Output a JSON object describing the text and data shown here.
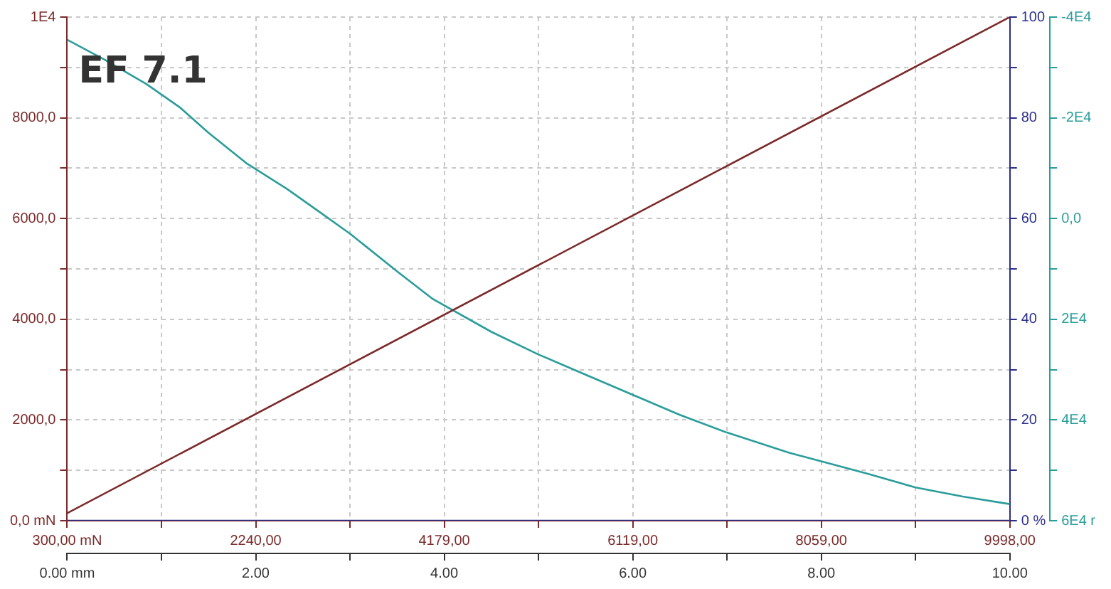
{
  "chart_data": {
    "type": "line",
    "annotations": [
      "EF 7.1"
    ],
    "xlim": [
      0,
      10
    ],
    "xticks": [
      {
        "value": 0,
        "label": "0.00 mm"
      },
      {
        "value": 1,
        "label": null
      },
      {
        "value": 2,
        "label": "2.00"
      },
      {
        "value": 3,
        "label": null
      },
      {
        "value": 4,
        "label": "4.00"
      },
      {
        "value": 5,
        "label": null
      },
      {
        "value": 6,
        "label": "6.00"
      },
      {
        "value": 7,
        "label": null
      },
      {
        "value": 8,
        "label": "8.00"
      },
      {
        "value": 9,
        "label": null
      },
      {
        "value": 10,
        "label": "10.00"
      }
    ],
    "x2lim": [
      300,
      9998
    ],
    "x2ticks": [
      {
        "value": 300,
        "label": "300,00 mN"
      },
      {
        "value": 1270,
        "label": null
      },
      {
        "value": 2240,
        "label": "2240,00"
      },
      {
        "value": 3209.5,
        "label": null
      },
      {
        "value": 4179,
        "label": "4179,00"
      },
      {
        "value": 5149,
        "label": null
      },
      {
        "value": 6119,
        "label": "6119,00"
      },
      {
        "value": 7089,
        "label": null
      },
      {
        "value": 8059,
        "label": "8059,00"
      },
      {
        "value": 9028.5,
        "label": null
      },
      {
        "value": 9998,
        "label": "9998,00"
      }
    ],
    "ylim": [
      0,
      10000
    ],
    "yticks": [
      {
        "value": 0,
        "label": "0,0 mN"
      },
      {
        "value": 1000,
        "label": null
      },
      {
        "value": 2000,
        "label": "2000,0"
      },
      {
        "value": 3000,
        "label": null
      },
      {
        "value": 4000,
        "label": "4000,0"
      },
      {
        "value": 5000,
        "label": null
      },
      {
        "value": 6000,
        "label": "6000,0"
      },
      {
        "value": 7000,
        "label": null
      },
      {
        "value": 8000,
        "label": "8000,0"
      },
      {
        "value": 9000,
        "label": null
      },
      {
        "value": 10000,
        "label": "1E4"
      }
    ],
    "y2lim": [
      0,
      100
    ],
    "y2ticks": [
      {
        "value": 0,
        "label": "0 %"
      },
      {
        "value": 10,
        "label": null
      },
      20,
      {
        "value": 30,
        "label": null
      },
      40,
      {
        "value": 50,
        "label": null
      },
      60,
      {
        "value": 70,
        "label": null
      },
      80,
      {
        "value": 90,
        "label": null
      },
      100
    ],
    "y3lim": [
      60000,
      -40000
    ],
    "y3ticks": [
      {
        "value": -40000,
        "label": "-4E4"
      },
      {
        "value": -30000,
        "label": null
      },
      {
        "value": -20000,
        "label": "-2E4"
      },
      {
        "value": -10000,
        "label": null
      },
      {
        "value": 0,
        "label": "0,0"
      },
      {
        "value": 10000,
        "label": null
      },
      {
        "value": 20000,
        "label": "2E4"
      },
      {
        "value": 30000,
        "label": null
      },
      {
        "value": 40000,
        "label": "4E4"
      },
      {
        "value": 50000,
        "label": null
      },
      {
        "value": 60000,
        "label": "6E4 r"
      }
    ],
    "grid": true,
    "marker": "none",
    "line_style": "solid",
    "series": [
      {
        "color": "#7b2a2a",
        "x": [
          0,
          10
        ],
        "values": [
          150,
          10000
        ]
      },
      {
        "color": "#2a9d9a",
        "axis": "y3",
        "x": [
          0,
          0.4,
          0.84,
          1.2,
          1.5,
          1.9,
          2.33,
          2.7,
          3.0,
          3.5,
          3.88,
          4.5,
          5.0,
          5.5,
          6.0,
          6.5,
          7.0,
          7.66,
          8.0,
          8.5,
          9.0,
          9.5,
          10
        ],
        "values": [
          -35500,
          -31500,
          -26700,
          -22000,
          -17000,
          -11000,
          -5900,
          -1000,
          3000,
          10500,
          16000,
          22500,
          27000,
          31000,
          35000,
          39000,
          42500,
          46500,
          48200,
          50700,
          53400,
          55200,
          56700
        ]
      },
      {
        "color": "#2b2f8a",
        "axis": "y2",
        "x": [
          0,
          10
        ],
        "values": [
          0,
          0
        ]
      }
    ]
  }
}
